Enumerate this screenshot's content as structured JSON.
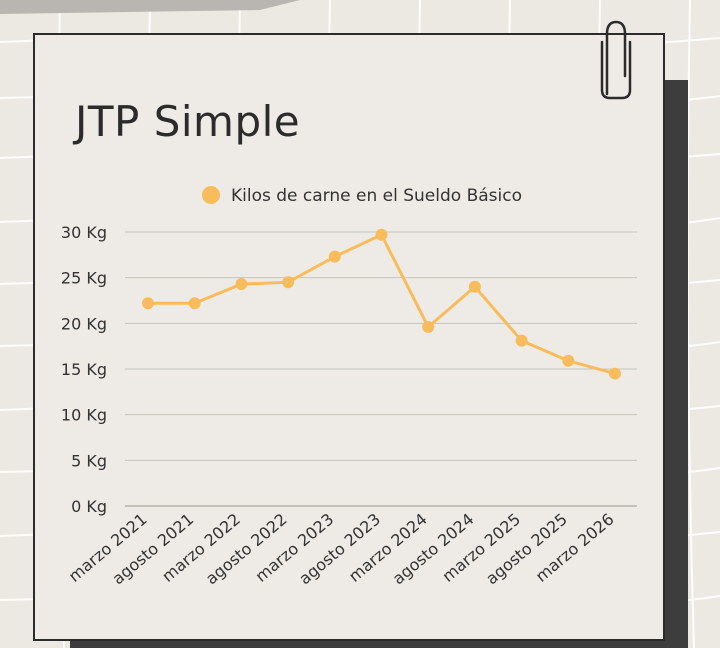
{
  "page": {
    "title": "JTP Simple"
  },
  "colors": {
    "background": "#ece9e3",
    "card": "#eeebe6",
    "shadow": "#3d3d3d",
    "series": "#f9bc5c",
    "gridline": "#c7c4bd",
    "text": "#2b2b2b"
  },
  "icons": {
    "clip": "paperclip-icon",
    "legend": "legend-circle-icon"
  },
  "chart_data": {
    "type": "line",
    "title": "JTP Simple",
    "categories": [
      "marzo 2021",
      "agosto 2021",
      "marzo 2022",
      "agosto 2022",
      "marzo 2023",
      "agosto 2023",
      "marzo 2024",
      "agosto 2024",
      "marzo 2025",
      "agosto 2025",
      "marzo 2026"
    ],
    "series": [
      {
        "name": "Kilos de carne en el Sueldo Básico",
        "values": [
          22.2,
          22.2,
          24.3,
          24.5,
          27.3,
          29.7,
          19.6,
          24.0,
          18.1,
          15.9,
          14.5
        ]
      }
    ],
    "ylim": [
      0,
      30
    ],
    "yticks": [
      0,
      5,
      10,
      15,
      20,
      25,
      30
    ],
    "ytick_labels": [
      "0 Kg",
      "5 Kg",
      "10 Kg",
      "15 Kg",
      "20 Kg",
      "25 Kg",
      "30 Kg"
    ],
    "grid": true,
    "legend_position": "top"
  }
}
